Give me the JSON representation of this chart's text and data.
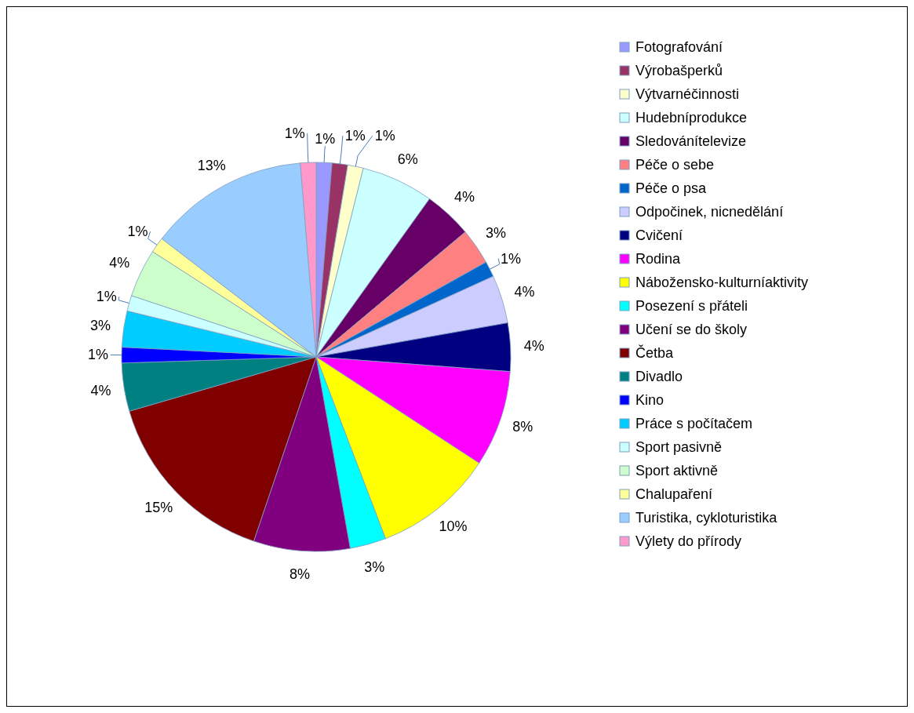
{
  "chart_data": {
    "type": "pie",
    "categories": [
      "Fotografování",
      "Výrobašperků",
      "Výtvarnéčinnosti",
      "Hudebníprodukce",
      "Sledovánítelevize",
      "Péče o sebe",
      "Péče o psa",
      "Odpočinek, nicnedělání",
      "Cvičení",
      "Rodina",
      "Nábožensko-kulturníaktivity",
      "Posezení s přáteli",
      "Učení se do školy",
      "Četba",
      "Divadlo",
      "Kino",
      "Práce s počítačem",
      "Sport pasivně",
      "Sport aktivně",
      "Chalupaření",
      "Turistika, cykloturistika",
      "Výlety do přírody"
    ],
    "values": [
      1.3,
      1.3,
      1.3,
      6,
      4,
      3,
      1.3,
      4,
      4,
      8,
      10,
      3,
      8,
      15.3,
      4,
      1.3,
      3,
      1.3,
      4,
      1.3,
      13.3,
      1.3
    ],
    "value_labels": [
      "1%",
      "1%",
      "1%",
      "6%",
      "4%",
      "3%",
      "1%",
      "4%",
      "4%",
      "8%",
      "10%",
      "3%",
      "8%",
      "15%",
      "4%",
      "1%",
      "3%",
      "1%",
      "4%",
      "1%",
      "13%",
      "1%"
    ],
    "colors": [
      "#9999ff",
      "#993366",
      "#ffffcc",
      "#ccffff",
      "#660066",
      "#ff8080",
      "#0066cc",
      "#ccccff",
      "#000080",
      "#ff00ff",
      "#ffff00",
      "#00ffff",
      "#800080",
      "#800000",
      "#008080",
      "#0000ff",
      "#00ccff",
      "#ccffff",
      "#ccffcc",
      "#ffff99",
      "#99ccff",
      "#ff99cc"
    ],
    "legend": "right"
  }
}
